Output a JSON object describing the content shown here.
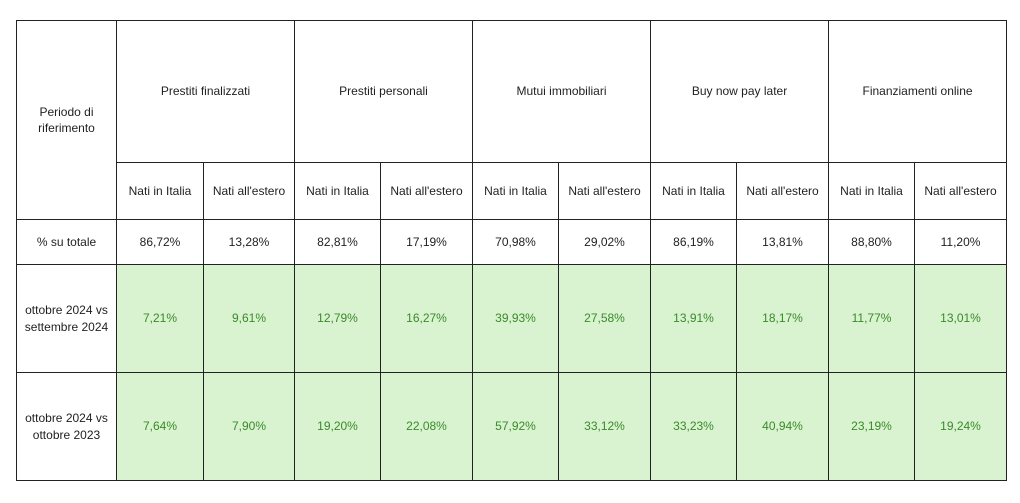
{
  "header": {
    "period_label": "Periodo di riferimento",
    "groups": [
      "Prestiti finalizzati",
      "Prestiti personali",
      "Mutui immobiliari",
      "Buy now pay later",
      "Finanziamenti online"
    ],
    "sub": [
      "Nati in Italia",
      "Nati all'estero"
    ]
  },
  "rows": [
    {
      "label": "% su totale",
      "values": [
        "86,72%",
        "13,28%",
        "82,81%",
        "17,19%",
        "70,98%",
        "29,02%",
        "86,19%",
        "13,81%",
        "88,80%",
        "11,20%"
      ]
    },
    {
      "label": "ottobre 2024 vs settembre 2024",
      "values": [
        "7,21%",
        "9,61%",
        "12,79%",
        "16,27%",
        "39,93%",
        "27,58%",
        "13,91%",
        "18,17%",
        "11,77%",
        "13,01%"
      ]
    },
    {
      "label": "ottobre 2024 vs ottobre 2023",
      "values": [
        "7,64%",
        "7,90%",
        "19,20%",
        "22,08%",
        "57,92%",
        "33,12%",
        "33,23%",
        "40,94%",
        "23,19%",
        "19,24%"
      ]
    }
  ],
  "colors": {
    "highlight_bg": "#d9f2d0",
    "highlight_text": "#3a8a2b",
    "border": "#222222"
  }
}
